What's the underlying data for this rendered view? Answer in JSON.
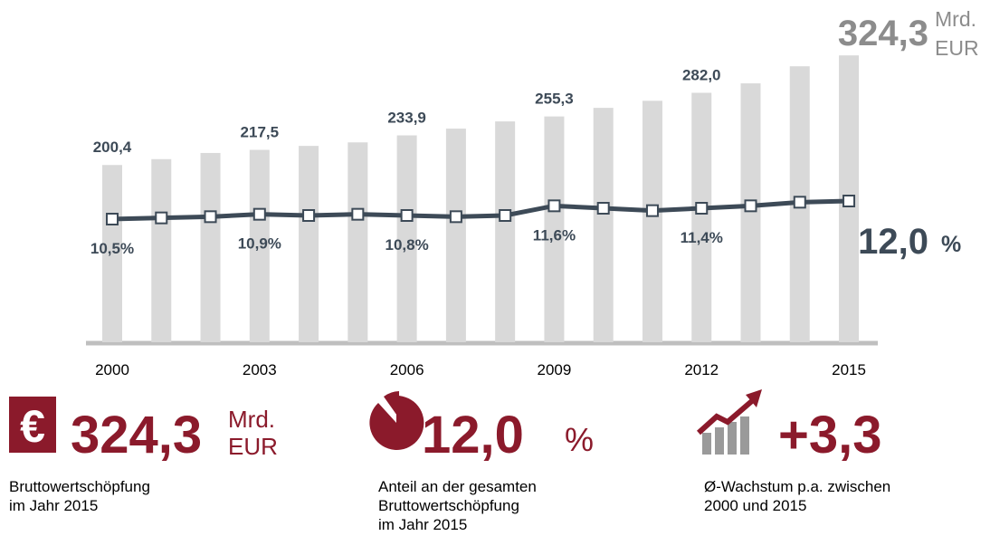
{
  "chart_data": {
    "type": "bar-line",
    "categories": [
      "2000",
      null,
      null,
      "2003",
      null,
      null,
      "2006",
      null,
      null,
      "2009",
      null,
      null,
      "2012",
      null,
      null,
      "2015"
    ],
    "series": [
      {
        "type": "bar",
        "color": "#d9d9d9",
        "values": [
          200.4,
          207,
          214,
          217.5,
          222,
          226,
          233.9,
          241.5,
          249.7,
          255.3,
          265,
          273,
          282.0,
          292.7,
          312,
          324.3
        ],
        "value_labels": [
          "200,4",
          null,
          null,
          "217,5",
          null,
          null,
          "233,9",
          null,
          null,
          "255,3",
          null,
          null,
          "282,0",
          null,
          null,
          "324,3"
        ],
        "unit": [
          "Mrd.",
          "EUR"
        ]
      },
      {
        "type": "line",
        "color": "#3d4a57",
        "axis": "y2",
        "values": [
          10.5,
          10.6,
          10.7,
          10.9,
          10.8,
          10.9,
          10.8,
          10.7,
          10.8,
          11.6,
          11.4,
          11.2,
          11.4,
          11.6,
          11.9,
          12.0
        ],
        "value_labels": [
          "10,5%",
          null,
          null,
          "10,9%",
          null,
          null,
          "10,8%",
          null,
          null,
          "11,6%",
          null,
          null,
          "11,4%",
          null,
          null,
          "12,0"
        ],
        "unit": "%"
      }
    ],
    "ylim": [
      0,
      346
    ],
    "y2lim": [
      0.3,
      25.65
    ]
  },
  "kpis": [
    {
      "value": "324,3",
      "unit": [
        "Mrd.",
        "EUR"
      ],
      "caption": [
        "Bruttowertschöpfung",
        "im Jahr 2015"
      ]
    },
    {
      "value": "12,0",
      "unit": [
        "%"
      ],
      "caption": [
        "Anteil an der gesamten",
        "Bruttowertschöpfung",
        "im Jahr 2015"
      ]
    },
    {
      "value": "+3,3",
      "unit": [],
      "caption": [
        "Ø-Wachstum p.a. zwischen",
        "2000 und 2015"
      ]
    }
  ]
}
